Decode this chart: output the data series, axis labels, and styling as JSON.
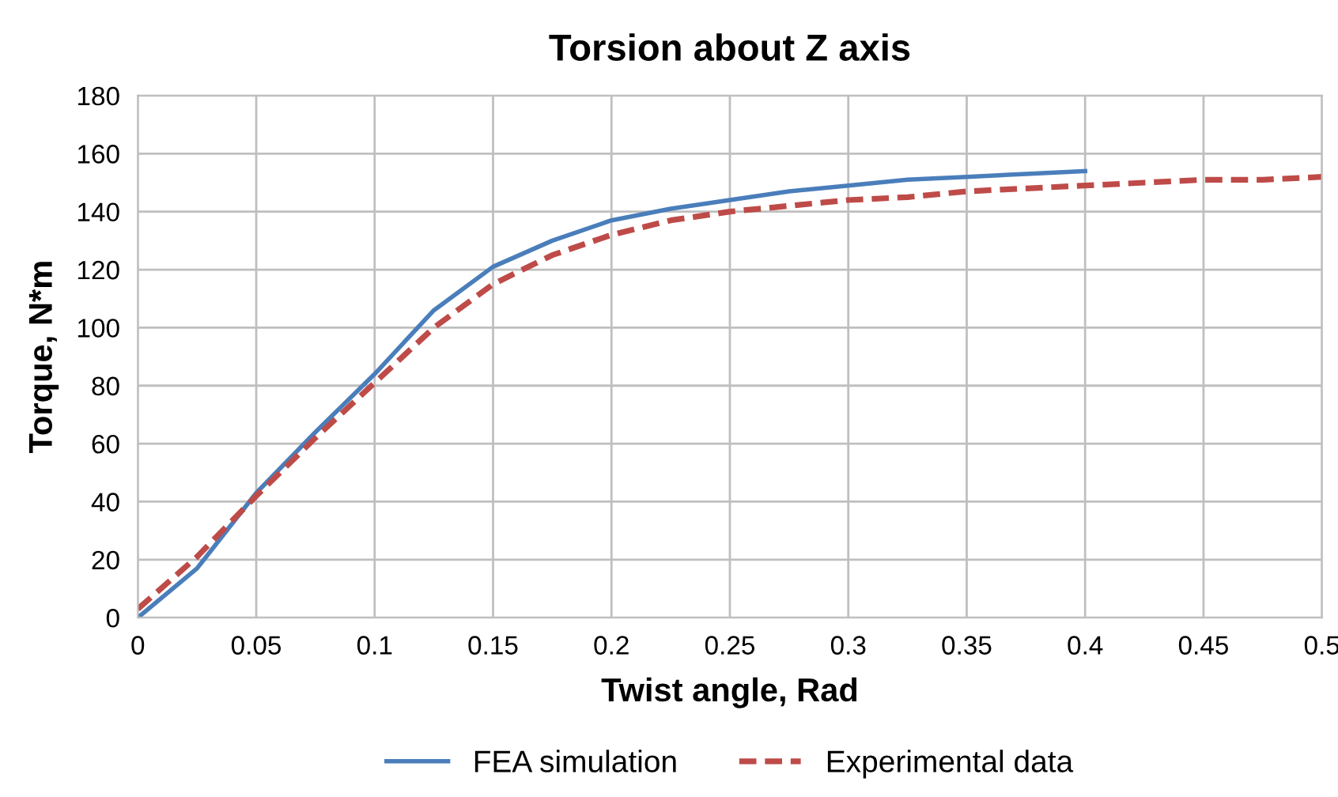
{
  "chart_data": {
    "type": "line",
    "title": "Torsion about Z axis",
    "xlabel": "Twist angle, Rad",
    "ylabel": "Torque, N*m",
    "xlim": [
      0,
      0.5
    ],
    "xticks": [
      0,
      0.05,
      0.1,
      0.15,
      0.2,
      0.25,
      0.3,
      0.35,
      0.4,
      0.45,
      0.5
    ],
    "ylim": [
      0,
      180
    ],
    "yticks": [
      0,
      20,
      40,
      60,
      80,
      100,
      120,
      140,
      160,
      180
    ],
    "grid": true,
    "legend": "bottom",
    "series": [
      {
        "name": "FEA simulation",
        "color": "#4a7ebb",
        "line_style": "solid",
        "x": [
          0,
          0.025,
          0.05,
          0.075,
          0.1,
          0.125,
          0.15,
          0.175,
          0.2,
          0.225,
          0.25,
          0.275,
          0.3,
          0.325,
          0.35,
          0.375,
          0.4
        ],
        "values": [
          0,
          17,
          43,
          64,
          84,
          106,
          121,
          130,
          137,
          141,
          144,
          147,
          149,
          151,
          152,
          153,
          154
        ]
      },
      {
        "name": "Experimental data",
        "color": "#be4b48",
        "line_style": "dashed",
        "x": [
          0,
          0.025,
          0.05,
          0.075,
          0.1,
          0.125,
          0.15,
          0.175,
          0.2,
          0.225,
          0.25,
          0.275,
          0.3,
          0.325,
          0.35,
          0.375,
          0.4,
          0.425,
          0.45,
          0.475,
          0.5
        ],
        "values": [
          3,
          21,
          42,
          62,
          81,
          100,
          115,
          125,
          132,
          137,
          140,
          142,
          144,
          145,
          147,
          148,
          149,
          150,
          151,
          151,
          152
        ]
      }
    ]
  }
}
